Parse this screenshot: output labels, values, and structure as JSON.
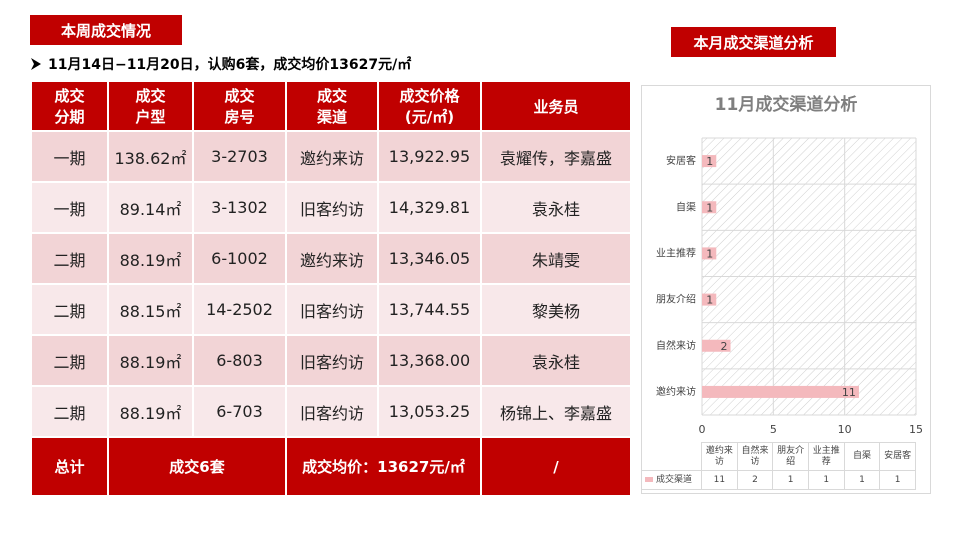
{
  "left_title": "本周成交情况",
  "summary": "11月14日−11月20日，认购6套，成交均价13627元/㎡",
  "table": {
    "header": [
      "成交\n分期",
      "成交\n户型",
      "成交\n房号",
      "成交\n渠道",
      "成交价格\n(元/㎡)",
      "业务员"
    ],
    "rows": [
      [
        "一期",
        "138.62㎡",
        "3-2703",
        "邀约来访",
        "13,922.95",
        "袁耀传，李嘉盛"
      ],
      [
        "一期",
        "89.14㎡",
        "3-1302",
        "旧客约访",
        "14,329.81",
        "袁永桂"
      ],
      [
        "二期",
        "88.19㎡",
        "6-1002",
        "邀约来访",
        "13,346.05",
        "朱靖雯"
      ],
      [
        "二期",
        "88.15㎡",
        "14-2502",
        "旧客约访",
        "13,744.55",
        "黎美杨"
      ],
      [
        "二期",
        "88.19㎡",
        "6-803",
        "旧客约访",
        "13,368.00",
        "袁永桂"
      ],
      [
        "二期",
        "88.19㎡",
        "6-703",
        "旧客约访",
        "13,053.25",
        "杨锦上、李嘉盛"
      ]
    ],
    "total": [
      "总计",
      "成交6套",
      "成交均价：13627元/㎡",
      "/"
    ]
  },
  "right_title": "本月成交渠道分析",
  "chart_data": {
    "type": "bar",
    "orientation": "horizontal",
    "title": "11月成交渠道分析",
    "categories": [
      "邀约来访",
      "自然来访",
      "朋友介绍",
      "业主推荐",
      "自渠",
      "安居客"
    ],
    "series": [
      {
        "name": "成交渠道",
        "color": "#f4b9bd",
        "values": [
          11,
          2,
          1,
          1,
          1,
          1
        ]
      }
    ],
    "xlim": [
      0,
      15
    ],
    "xticks": [
      0,
      5,
      10,
      15
    ],
    "grid": true
  }
}
